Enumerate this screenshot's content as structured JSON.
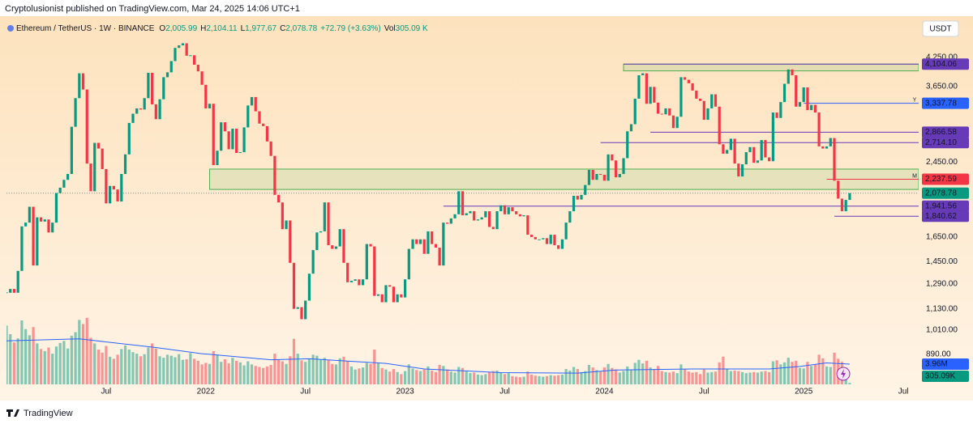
{
  "header": "Cryptolusionist published on TradingView.com, Mar 24, 2025 14:06 UTC+1",
  "footer": "TradingView",
  "currency_button": "USDT",
  "chart_data": {
    "type": "candlestick",
    "legend": {
      "symbol": "Ethereum / TetherUS · 1W · BINANCE",
      "fields": [
        {
          "key": "O",
          "text": "2,005.99"
        },
        {
          "key": "H",
          "text": "2,104.11"
        },
        {
          "key": "L",
          "text": "1,977.67"
        },
        {
          "key": "C",
          "text": "2,078.78"
        }
      ],
      "change": "+72.79 (+3.63%)",
      "volume_key": "Vol",
      "volume_text": "305.09 K"
    },
    "closes": [
      1230,
      1255,
      1230,
      1380,
      1745,
      1780,
      1935,
      1420,
      1830,
      1790,
      1810,
      1690,
      1780,
      2080,
      2140,
      2230,
      2300,
      2950,
      3430,
      3910,
      3590,
      2430,
      2100,
      2710,
      2630,
      2360,
      1970,
      2160,
      2120,
      1990,
      2300,
      2550,
      3010,
      3160,
      3250,
      3230,
      3430,
      3920,
      3320,
      3070,
      3410,
      3830,
      3930,
      4170,
      4470,
      4530,
      4580,
      4290,
      4300,
      4090,
      3950,
      3680,
      3250,
      3330,
      2410,
      2600,
      3020,
      2880,
      2620,
      2920,
      2570,
      2580,
      2940,
      3300,
      3450,
      3200,
      3000,
      2960,
      2730,
      2530,
      2060,
      1980,
      1720,
      1800,
      1440,
      1130,
      1140,
      1070,
      1180,
      1360,
      1540,
      1690,
      1700,
      1980,
      1580,
      1550,
      1570,
      1720,
      1440,
      1300,
      1310,
      1320,
      1280,
      1320,
      1590,
      1570,
      1210,
      1220,
      1170,
      1280,
      1270,
      1170,
      1220,
      1200,
      1320,
      1550,
      1630,
      1590,
      1630,
      1510,
      1700,
      1590,
      1560,
      1420,
      1780,
      1770,
      1820,
      1860,
      2100,
      1850,
      1870,
      1890,
      1800,
      1810,
      1830,
      1890,
      1740,
      1720,
      1890,
      1950,
      1860,
      1930,
      1890,
      1860,
      1840,
      1850,
      1670,
      1650,
      1630,
      1630,
      1640,
      1590,
      1670,
      1580,
      1550,
      1630,
      1780,
      1890,
      2050,
      2010,
      2060,
      2170,
      2350,
      2230,
      2300,
      2290,
      2220,
      2550,
      2470,
      2260,
      2300,
      2500,
      2880,
      2990,
      3420,
      3870,
      3910,
      3330,
      3640,
      3350,
      3160,
      3150,
      3250,
      3130,
      2930,
      3110,
      3830,
      3780,
      3710,
      3570,
      3420,
      3380,
      3060,
      3250,
      3500,
      3280,
      2690,
      2560,
      2610,
      2770,
      2430,
      2270,
      2420,
      2580,
      2650,
      2440,
      2470,
      2750,
      2510,
      2460,
      3180,
      3090,
      3360,
      3700,
      3990,
      3870,
      3280,
      3360,
      3630,
      3220,
      3310,
      3180,
      2660,
      2630,
      2660,
      2780,
      2220,
      2020,
      1890,
      2005.99,
      2078.78
    ],
    "volume": [
      11.5,
      9.8,
      8.2,
      9.0,
      12.5,
      10.8,
      9.6,
      11.2,
      8.0,
      6.9,
      6.5,
      7.2,
      6.0,
      7.4,
      8.1,
      8.5,
      7.0,
      9.5,
      10.2,
      12.6,
      11.8,
      13.0,
      9.1,
      8.0,
      6.8,
      6.2,
      7.5,
      5.4,
      5.0,
      5.8,
      6.9,
      7.6,
      6.8,
      6.3,
      6.0,
      5.5,
      5.9,
      7.2,
      8.0,
      7.0,
      5.5,
      5.2,
      5.8,
      5.6,
      5.3,
      5.9,
      4.8,
      4.9,
      6.1,
      5.0,
      4.6,
      3.9,
      4.2,
      4.0,
      6.5,
      5.8,
      4.4,
      4.9,
      4.1,
      5.2,
      4.6,
      4.3,
      3.7,
      4.5,
      3.9,
      3.6,
      3.4,
      3.2,
      3.5,
      3.8,
      6.0,
      4.9,
      4.5,
      4.0,
      5.5,
      8.9,
      6.0,
      4.7,
      4.4,
      5.0,
      5.8,
      5.6,
      4.9,
      5.2,
      4.8,
      4.0,
      3.9,
      5.1,
      5.4,
      4.6,
      3.5,
      2.9,
      3.1,
      3.3,
      4.2,
      4.0,
      6.8,
      4.1,
      3.2,
      2.9,
      2.5,
      3.0,
      2.4,
      2.0,
      2.6,
      3.9,
      3.1,
      2.8,
      2.6,
      2.9,
      3.5,
      2.7,
      2.4,
      3.8,
      3.6,
      2.9,
      2.5,
      2.3,
      3.4,
      3.2,
      2.5,
      2.2,
      2.3,
      1.9,
      1.8,
      2.0,
      2.4,
      2.6,
      2.7,
      2.3,
      2.0,
      2.2,
      1.6,
      1.5,
      1.4,
      1.5,
      2.5,
      1.9,
      1.7,
      1.6,
      1.5,
      1.6,
      1.8,
      1.7,
      1.8,
      1.9,
      3.0,
      2.7,
      3.4,
      3.0,
      2.4,
      2.6,
      3.8,
      3.3,
      2.8,
      2.5,
      3.3,
      4.0,
      3.2,
      2.9,
      2.3,
      2.6,
      3.5,
      2.9,
      4.2,
      4.8,
      4.1,
      4.6,
      3.3,
      3.0,
      3.6,
      2.6,
      2.4,
      2.3,
      2.5,
      2.2,
      3.9,
      3.0,
      2.5,
      2.3,
      2.4,
      2.0,
      2.9,
      2.3,
      2.4,
      2.5,
      4.3,
      5.4,
      3.0,
      2.6,
      2.7,
      2.6,
      2.4,
      2.2,
      2.3,
      2.4,
      2.3,
      2.5,
      2.6,
      2.4,
      4.5,
      4.7,
      3.9,
      4.3,
      5.2,
      4.4,
      4.6,
      3.2,
      3.1,
      4.4,
      3.6,
      3.9,
      5.8,
      5.1,
      3.5,
      3.4,
      6.2,
      5.0,
      4.4,
      3.2,
      0.30509
    ],
    "volume_labels": {
      "220": "305.09K"
    },
    "volume_ma": {
      "x": [
        0,
        19,
        39,
        51,
        69,
        79,
        99,
        109,
        129,
        149,
        159,
        179,
        199,
        207,
        214,
        220
      ],
      "values": [
        8.5,
        8.9,
        7.2,
        6.0,
        4.8,
        5.0,
        4.1,
        3.0,
        2.3,
        2.2,
        2.8,
        3.0,
        3.0,
        3.5,
        4.2,
        3.96
      ],
      "value_labels": {
        "15": "3.96M"
      }
    },
    "vlim": [
      0,
      72
    ],
    "up_color": "#089981",
    "down_color": "#f23645",
    "ma_color": "#2962ff",
    "log": true,
    "xlim": [
      0,
      238
    ],
    "ylim": [
      759,
      5283
    ],
    "yticks": [
      {
        "value": 4250,
        "label": "4,250.00"
      },
      {
        "value": 3650,
        "label": "3,650.00"
      },
      {
        "value": 2450,
        "label": "2,450.00"
      },
      {
        "value": 1650,
        "label": "1,650.00"
      },
      {
        "value": 1450,
        "label": "1,450.00"
      },
      {
        "value": 1290,
        "label": "1,290.00"
      },
      {
        "value": 1130,
        "label": "1,130.00"
      },
      {
        "value": 1010,
        "label": "1,010.00"
      },
      {
        "value": 890,
        "label": "890.00"
      }
    ],
    "xticks": [
      {
        "value": 26,
        "label": "Jul"
      },
      {
        "value": 52,
        "label": "2022"
      },
      {
        "value": 78,
        "label": "Jul"
      },
      {
        "value": 104,
        "label": "2023"
      },
      {
        "value": 130,
        "label": "Jul"
      },
      {
        "value": 156,
        "label": "2024"
      },
      {
        "value": 182,
        "label": "Jul"
      },
      {
        "value": 208,
        "label": "2025"
      },
      {
        "value": 234,
        "label": "Jul"
      }
    ],
    "zones": [
      {
        "from": 161,
        "top": 4104.06,
        "bottom": 3960
      },
      {
        "from": 53,
        "top": 2360,
        "bottom": 2120
      }
    ],
    "levels": [
      {
        "value": 4104.06,
        "label": "4,104.06",
        "color": "#673ab7",
        "from": 161
      },
      {
        "value": 3337.78,
        "label": "3,337.78",
        "color": "#2962ff",
        "from": 208,
        "tag": "Y"
      },
      {
        "value": 2866.58,
        "label": "2,866.58",
        "color": "#673ab7",
        "from": 168
      },
      {
        "value": 2714.1,
        "label": "2,714.10",
        "color": "#673ab7",
        "from": 155
      },
      {
        "value": 2237.59,
        "label": "2,237.59",
        "color": "#f23645",
        "from": 214,
        "tag": "M"
      },
      {
        "value": 1941.56,
        "label": "1,941.56",
        "color": "#673ab7",
        "from": 114
      },
      {
        "value": 1840.62,
        "label": "1,840.62",
        "color": "#673ab7",
        "from": 216
      }
    ],
    "current_price": {
      "value": 2078.78,
      "label": "2,078.78",
      "color": "#089981"
    }
  }
}
